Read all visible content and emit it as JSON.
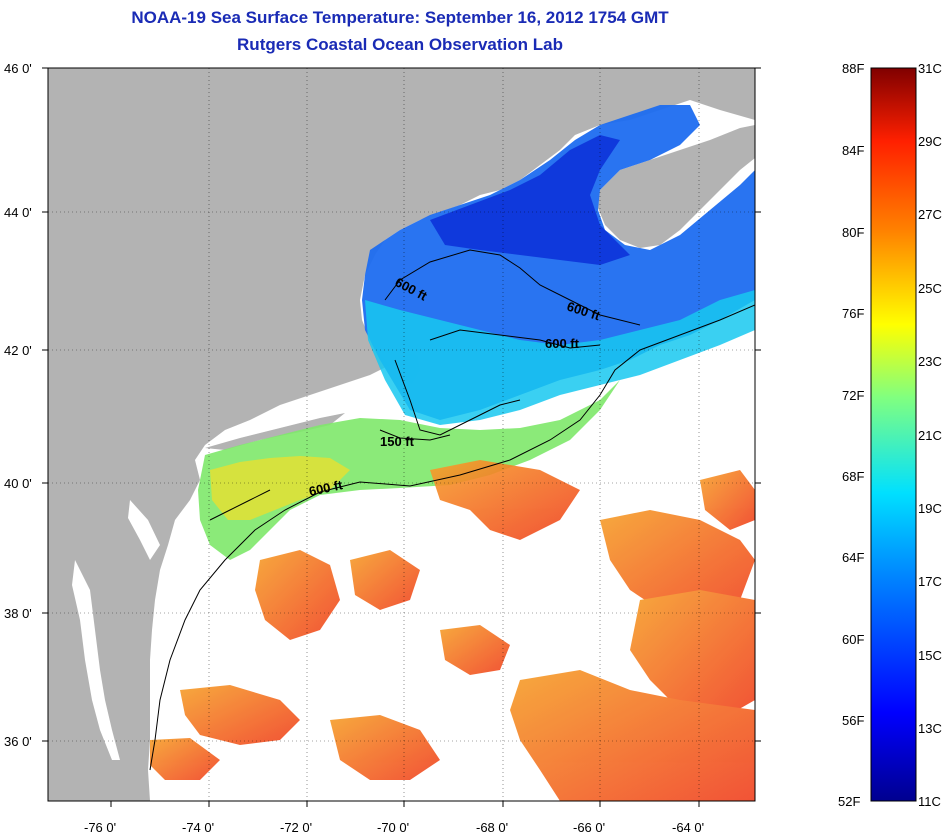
{
  "header": {
    "title": "NOAA-19 Sea Surface Temperature:  September 16, 2012 1754 GMT",
    "subtitle": "Rutgers Coastal Ocean Observation Lab"
  },
  "axes": {
    "lat_labels": [
      "46 0'",
      "44 0'",
      "42 0'",
      "40 0'",
      "38 0'",
      "36 0'"
    ],
    "lon_labels": [
      "-76 0'",
      "-74 0'",
      "-72 0'",
      "-70 0'",
      "-68 0'",
      "-66 0'",
      "-64 0'"
    ]
  },
  "contours": {
    "labels": [
      "600 ft",
      "600 ft",
      "600 ft",
      "150 ft",
      "600 ft"
    ]
  },
  "colorbar": {
    "fahrenheit": [
      "88F",
      "84F",
      "80F",
      "76F",
      "72F",
      "68F",
      "64F",
      "60F",
      "56F",
      "52F"
    ],
    "celsius": [
      "31C",
      "29C",
      "27C",
      "25C",
      "23C",
      "21C",
      "19C",
      "17C",
      "15C",
      "13C",
      "11C"
    ]
  },
  "colors": {
    "title": "#1a2bb5",
    "land": "#b3b3b3",
    "cloud": "#ffffff"
  }
}
